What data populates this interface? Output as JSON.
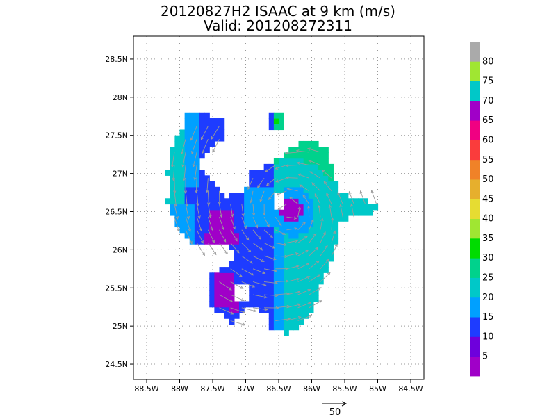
{
  "chart_data": {
    "type": "heatmap",
    "title": "20120827H2 ISAAC at 9 km (m/s)",
    "subtitle": "Valid: 201208272311",
    "x_ticks": [
      "88.5W",
      "88W",
      "87.5W",
      "87W",
      "86.5W",
      "86W",
      "85.5W",
      "85W",
      "84.5W"
    ],
    "x_tick_values": [
      -88.5,
      -88,
      -87.5,
      -87,
      -86.5,
      -86,
      -85.5,
      -85,
      -84.5
    ],
    "y_ticks": [
      "24.5N",
      "25N",
      "25.5N",
      "26N",
      "26.5N",
      "27N",
      "27.5N",
      "28N",
      "28.5N"
    ],
    "y_tick_values": [
      24.5,
      25,
      25.5,
      26,
      26.5,
      27,
      27.5,
      28,
      28.5
    ],
    "xlim": [
      -88.7,
      -84.3
    ],
    "ylim": [
      24.3,
      28.8
    ],
    "grid": true,
    "colorbar": {
      "labels": [
        "5",
        "10",
        "15",
        "20",
        "25",
        "30",
        "35",
        "40",
        "45",
        "50",
        "55",
        "60",
        "65",
        "70",
        "75",
        "80"
      ],
      "colors": [
        "#a000c8",
        "#6e00dc",
        "#1e3cff",
        "#00a0ff",
        "#00c8c8",
        "#00d28c",
        "#00dc00",
        "#a0e632",
        "#e6dc32",
        "#e6af2d",
        "#f08228",
        "#fa3c3c",
        "#f00082",
        "#a000c8",
        "#00c8c8",
        "#a0e632",
        "#aaaaaa"
      ]
    },
    "region_bands": [
      {
        "name": "magenta core",
        "color": "#a000c8",
        "points": [
          [
            -86.4,
            26.7
          ],
          [
            -86.2,
            26.7
          ],
          [
            -86.1,
            26.5
          ],
          [
            -86.3,
            26.35
          ],
          [
            -86.5,
            26.45
          ]
        ]
      },
      {
        "name": "western purple",
        "color": "#a000c8",
        "points": [
          [
            -87.55,
            26.5
          ],
          [
            -87.2,
            26.5
          ],
          [
            -87.1,
            26.1
          ],
          [
            -87.6,
            26.1
          ]
        ]
      },
      {
        "name": "southern purple",
        "color": "#a000c8",
        "points": [
          [
            -87.5,
            25.7
          ],
          [
            -87.2,
            25.7
          ],
          [
            -87.1,
            25.15
          ],
          [
            -87.5,
            25.3
          ]
        ]
      },
      {
        "name": "green spot",
        "color": "#00dc00",
        "points": [
          [
            -86.62,
            27.75
          ],
          [
            -86.5,
            27.7
          ],
          [
            -86.6,
            27.6
          ]
        ]
      }
    ],
    "reference_vector": {
      "label": "50",
      "units": "m/s"
    }
  },
  "colors": {
    "axes": "#000000",
    "grid": "#999999",
    "arrows": "#9a9a9a"
  }
}
